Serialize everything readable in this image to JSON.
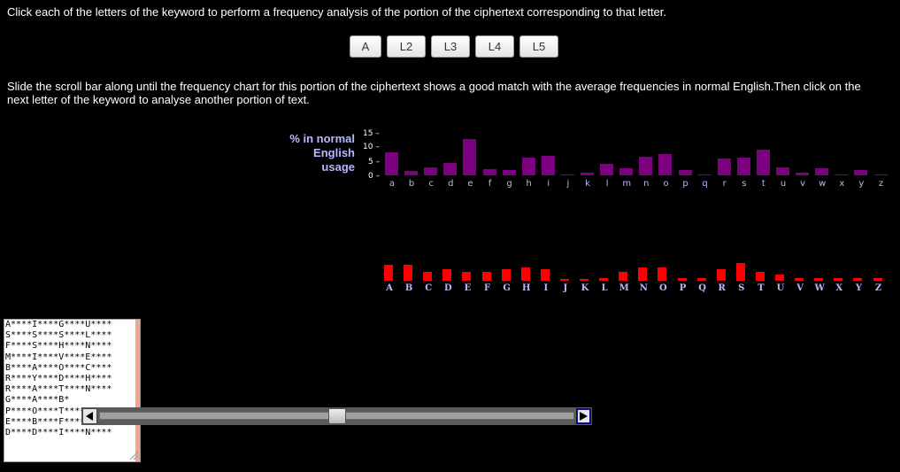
{
  "instructions": {
    "line1": "Click each of the letters of the keyword to perform a frequency analysis of the portion of the ciphertext corresponding to that letter.",
    "line2": "Slide the scroll bar along until the frequency chart for this portion of the ciphertext shows a good match with the average frequencies in normal English.Then click on the next letter of the keyword to analyse another portion of text."
  },
  "keyword_buttons": [
    "A",
    "L2",
    "L3",
    "L4",
    "L5"
  ],
  "english_chart": {
    "ylabel_lines": [
      "% in normal",
      "English",
      "usage"
    ],
    "yticks": [
      "15 –",
      "10 –",
      "5 –",
      "0 –"
    ]
  },
  "chart_data": [
    {
      "type": "bar",
      "categories": [
        "a",
        "b",
        "c",
        "d",
        "e",
        "f",
        "g",
        "h",
        "i",
        "j",
        "k",
        "l",
        "m",
        "n",
        "o",
        "p",
        "q",
        "r",
        "s",
        "t",
        "u",
        "v",
        "w",
        "x",
        "y",
        "z"
      ],
      "values": [
        8.2,
        1.5,
        2.8,
        4.3,
        12.7,
        2.2,
        2.0,
        6.1,
        7.0,
        0.2,
        0.8,
        4.0,
        2.4,
        6.7,
        7.5,
        1.9,
        0.1,
        6.0,
        6.3,
        9.1,
        2.8,
        1.0,
        2.4,
        0.2,
        2.0,
        0.1
      ],
      "ylim": [
        0,
        15
      ],
      "color": "#7d0080"
    },
    {
      "type": "bar",
      "categories": [
        "A",
        "B",
        "C",
        "D",
        "E",
        "F",
        "G",
        "H",
        "I",
        "J",
        "K",
        "L",
        "M",
        "N",
        "O",
        "P",
        "Q",
        "R",
        "S",
        "T",
        "U",
        "V",
        "W",
        "X",
        "Y",
        "Z"
      ],
      "values": [
        11,
        11,
        6,
        8,
        6,
        6,
        8,
        9,
        8,
        1,
        1,
        2,
        6,
        9,
        9,
        2,
        2,
        8,
        12,
        6,
        4,
        2,
        2,
        2,
        2,
        2
      ],
      "color": "#ff0000"
    }
  ],
  "ciphertext": {
    "lines": [
      "A****I****G****U****",
      "S****S****S****L****",
      "F****S****H****N****",
      "M****I****V****E****",
      "B****A****O****C****",
      "R****Y****D****H****",
      "R****A****T****N****",
      "G****A****B*",
      "P****O****T****Q****",
      "E****B****F****T****",
      "D****D****I****N****"
    ]
  },
  "scrollbar": {
    "position": 0.5
  },
  "icons": {
    "left": "left-arrow-icon",
    "right": "right-arrow-icon"
  }
}
